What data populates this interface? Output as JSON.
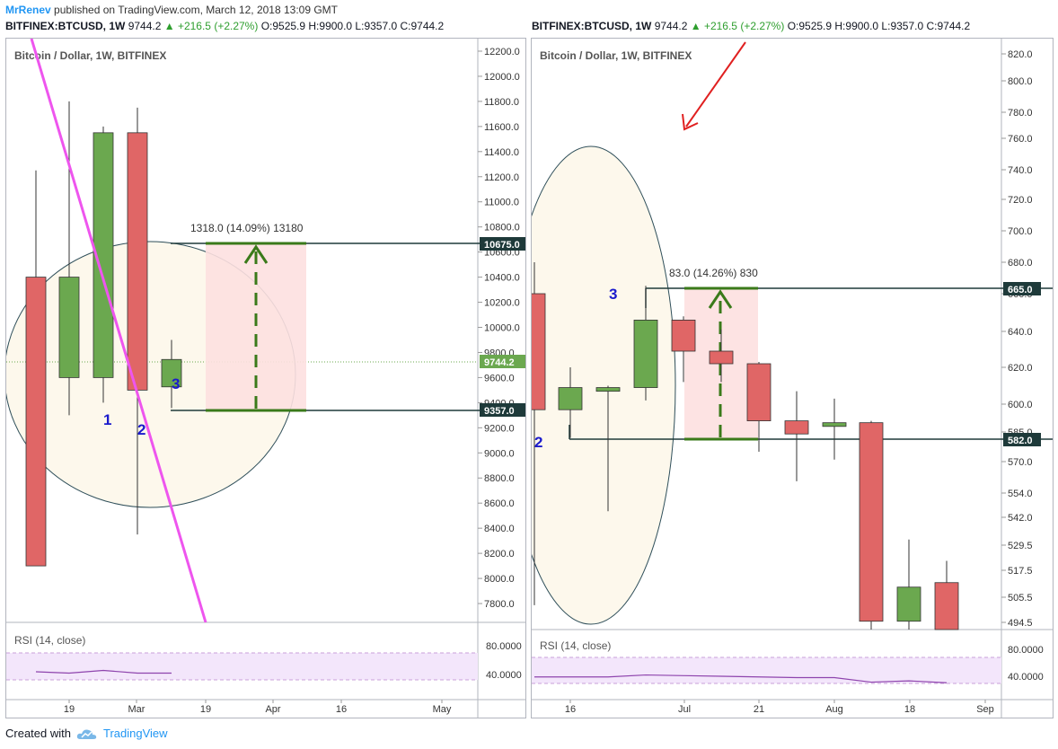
{
  "header": {
    "author": "MrRenev",
    "published_text": "published on TradingView.com, March 12, 2018 13:09 GMT"
  },
  "left": {
    "symbol_line": {
      "ticker": "BITFINEX:BTCUSD, 1W",
      "last": "9744.2",
      "change": "▲ +216.5 (+2.27%)",
      "ohlc": "O:9525.9 H:9900.0 L:9357.0 C:9744.2"
    },
    "chart_title": "Bitcoin / Dollar, 1W, BITFINEX",
    "measure_label": "1318.0 (14.09%) 13180",
    "wave_labels": [
      "1",
      "2",
      "3"
    ],
    "price_labels": {
      "top": "10675.0",
      "current": "9744.2",
      "bottom": "9357.0"
    },
    "rsi_label": "RSI (14, close)",
    "rsi_ticks": [
      "80.0000",
      "40.0000"
    ],
    "x_ticks": [
      "19",
      "Mar",
      "19",
      "Apr",
      "16",
      "May"
    ],
    "y_ticks": [
      "12200.0",
      "12000.0",
      "11800.0",
      "11600.0",
      "11400.0",
      "11200.0",
      "11000.0",
      "10800.0",
      "10600.0",
      "10400.0",
      "10200.0",
      "10000.0",
      "9800.0",
      "9600.0",
      "9400.0",
      "9200.0",
      "9000.0",
      "8800.0",
      "8600.0",
      "8400.0",
      "8200.0",
      "8000.0",
      "7800.0"
    ]
  },
  "right": {
    "symbol_line": {
      "ticker": "BITFINEX:BTCUSD, 1W",
      "last": "9744.2",
      "change": "▲ +216.5 (+2.27%)",
      "ohlc": "O:9525.9 H:9900.0 L:9357.0 C:9744.2"
    },
    "chart_title": "Bitcoin / Dollar, 1W, BITFINEX",
    "measure_label": "83.0 (14.26%) 830",
    "wave_labels": [
      "3",
      "2"
    ],
    "price_labels": {
      "top": "665.0",
      "bottom": "582.0"
    },
    "rsi_label": "RSI (14, close)",
    "rsi_ticks": [
      "80.0000",
      "40.0000"
    ],
    "x_ticks": [
      "16",
      "Jul",
      "21",
      "Aug",
      "18",
      "Sep"
    ],
    "y_ticks": [
      "820.0",
      "800.0",
      "780.0",
      "760.0",
      "740.0",
      "720.0",
      "700.0",
      "680.0",
      "660.0",
      "640.0",
      "620.0",
      "600.0",
      "585.0",
      "570.0",
      "554.0",
      "542.0",
      "529.5",
      "517.5",
      "505.5",
      "494.5"
    ]
  },
  "footer": {
    "created_with": "Created with",
    "brand": "TradingView"
  },
  "colors": {
    "bull": "#6ba84f",
    "bear": "#e06666",
    "trendline": "#ee55ee",
    "measure_fill": "#fde0e0",
    "arrow": "#3a7a1a",
    "wave_label": "#1a1acc",
    "red_arrow": "#e02020",
    "ellipse_fill": "#fdf8ec",
    "rsi_band": "#f3e6fb"
  },
  "chart_data": [
    {
      "type": "candlestick",
      "title": "Bitcoin / Dollar, 1W, BITFINEX",
      "ylim": [
        7650,
        12300
      ],
      "candles": [
        {
          "o": 10400,
          "h": 11250,
          "l": 8100,
          "c": 8100
        },
        {
          "o": 9600,
          "h": 11800,
          "l": 9300,
          "c": 10400
        },
        {
          "o": 9600,
          "h": 11600,
          "l": 9400,
          "c": 11550
        },
        {
          "o": 11550,
          "h": 11750,
          "l": 8350,
          "c": 9500
        },
        {
          "o": 9526,
          "h": 9900,
          "l": 9357,
          "c": 9744.2
        }
      ],
      "measure": {
        "from": 9357.0,
        "to": 10675.0,
        "change": 1318.0,
        "percent": 14.09
      },
      "current_price": 9744.2,
      "rsi": {
        "levels": [
          80,
          40
        ],
        "values": [
          52,
          50,
          54,
          50,
          50
        ]
      }
    },
    {
      "type": "candlestick",
      "title": "Bitcoin / Dollar, 1W, BITFINEX",
      "ylim": [
        490,
        825
      ],
      "candles": [
        {
          "o": 660,
          "h": 680,
          "l": 502,
          "c": 597
        },
        {
          "o": 597,
          "h": 620,
          "l": 582,
          "c": 609
        },
        {
          "o": 607,
          "h": 610,
          "l": 545,
          "c": 609
        },
        {
          "o": 609,
          "h": 665,
          "l": 602,
          "c": 646
        },
        {
          "o": 646,
          "h": 648,
          "l": 612,
          "c": 629
        },
        {
          "o": 629,
          "h": 641,
          "l": 612,
          "c": 622
        },
        {
          "o": 622,
          "h": 623,
          "l": 575,
          "c": 591
        },
        {
          "o": 591,
          "h": 607,
          "l": 560,
          "c": 584
        },
        {
          "o": 588,
          "h": 603,
          "l": 571,
          "c": 590
        },
        {
          "o": 590,
          "h": 591,
          "l": 480,
          "c": 495
        },
        {
          "o": 495,
          "h": 532,
          "l": 486,
          "c": 510
        },
        {
          "o": 512,
          "h": 522,
          "l": 486,
          "c": 488
        }
      ],
      "measure": {
        "from": 582.0,
        "to": 665.0,
        "change": 83.0,
        "percent": 14.26
      },
      "rsi": {
        "levels": [
          80,
          40
        ],
        "values": [
          50,
          50,
          50,
          53,
          52,
          51,
          50,
          49,
          49,
          42,
          44,
          41
        ]
      }
    }
  ]
}
